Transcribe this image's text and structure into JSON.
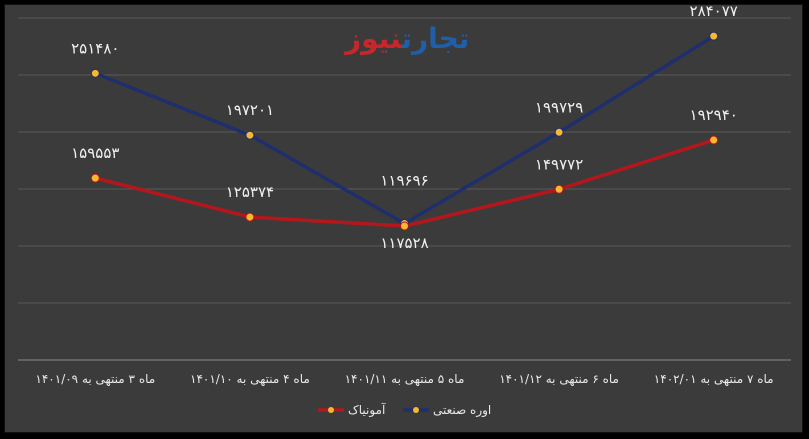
{
  "logo": {
    "part1": "تجارت",
    "part2": "نیوز"
  },
  "chart_data": {
    "type": "line",
    "categories": [
      "ماه ۳ منتهی به ۱۴۰۱/۰۹",
      "ماه ۴ منتهی به ۱۴۰۱/۱۰",
      "ماه ۵ منتهی به ۱۴۰۱/۱۱",
      "ماه ۶ منتهی به ۱۴۰۱/۱۲",
      "ماه ۷ منتهی به ۱۴۰۲/۰۱"
    ],
    "series": [
      {
        "name": "اوره صنعتی",
        "color": "#1f2f6e",
        "values": [
          251480,
          197201,
          119696,
          199729,
          284077
        ],
        "labels": [
          "۲۵۱۴۸۰",
          "۱۹۷۲۰۱",
          "۱۱۹۶۹۶",
          "۱۹۹۷۲۹",
          "۲۸۴۰۷۷"
        ]
      },
      {
        "name": "آمونیاک",
        "color": "#b5161c",
        "values": [
          159553,
          125374,
          117528,
          149772,
          192940
        ],
        "labels": [
          "۱۵۹۵۵۳",
          "۱۲۵۳۷۴",
          "۱۱۷۵۲۸",
          "۱۴۹۷۷۲",
          "۱۹۲۹۴۰"
        ]
      }
    ],
    "ylim": [
      0,
      300000
    ],
    "grid": true,
    "legend": "bottom",
    "marker_color": "#f5b82e"
  }
}
